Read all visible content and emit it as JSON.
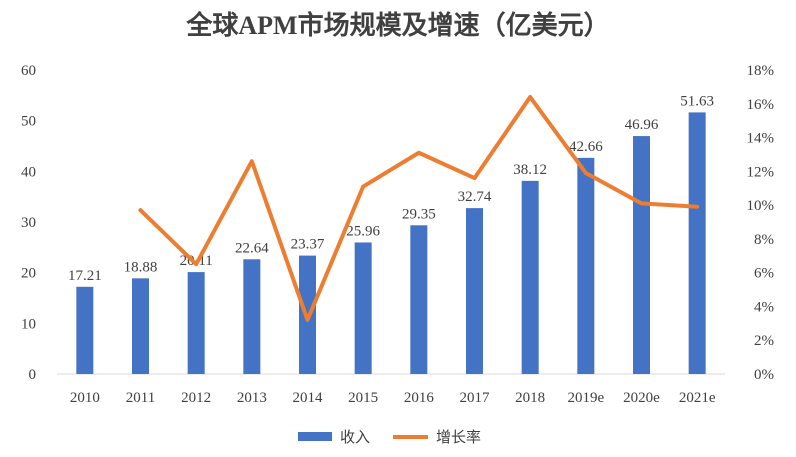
{
  "chart_data": {
    "type": "bar+line",
    "title": "全球APM市场规模及增速（亿美元）",
    "categories": [
      "2010",
      "2011",
      "2012",
      "2013",
      "2014",
      "2015",
      "2016",
      "2017",
      "2018",
      "2019e",
      "2020e",
      "2021e"
    ],
    "series": [
      {
        "name": "收入",
        "type": "bar",
        "axis": "left",
        "color": "#4472C4",
        "values": [
          17.21,
          18.88,
          20.11,
          22.64,
          23.37,
          25.96,
          29.35,
          32.74,
          38.12,
          42.66,
          46.96,
          51.63
        ]
      },
      {
        "name": "增长率",
        "type": "line",
        "axis": "right",
        "color": "#ED7D31",
        "values": [
          null,
          9.7,
          6.5,
          12.6,
          3.2,
          11.1,
          13.1,
          11.6,
          16.4,
          11.9,
          10.1,
          9.9
        ]
      }
    ],
    "left_axis": {
      "ylim": [
        0,
        60
      ],
      "ticks": [
        "0",
        "10",
        "20",
        "30",
        "40",
        "50",
        "60"
      ]
    },
    "right_axis": {
      "ylim": [
        0,
        18
      ],
      "ticks": [
        "0%",
        "2%",
        "4%",
        "6%",
        "8%",
        "10%",
        "12%",
        "14%",
        "16%",
        "18%"
      ]
    },
    "grid": false,
    "legend": "bottom"
  }
}
